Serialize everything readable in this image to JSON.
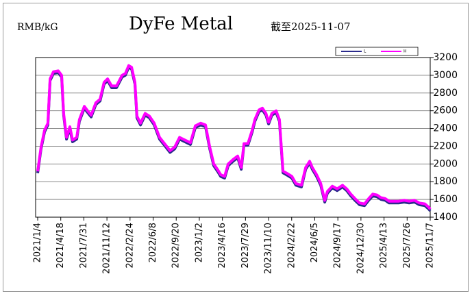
{
  "chart_data": {
    "type": "line",
    "title": "DyFe Metal",
    "unit_label": "RMB/kG",
    "date_note": "截至2025-11-07",
    "x": [
      "2021/1/4",
      "2021/1/19",
      "2021/2/4",
      "2021/2/19",
      "2021/3/1",
      "2021/3/16",
      "2021/4/7",
      "2021/4/22",
      "2021/5/1",
      "2021/5/14",
      "2021/5/29",
      "2021/6/10",
      "2021/6/29",
      "2021/7/11",
      "2021/8/2",
      "2021/8/14",
      "2021/9/2",
      "2021/9/23",
      "2021/10/12",
      "2021/10/30",
      "2021/11/15",
      "2021/12/3",
      "2021/12/25",
      "2022/1/19",
      "2022/2/3",
      "2022/2/18",
      "2022/3/3",
      "2022/3/18",
      "2022/3/27",
      "2022/4/12",
      "2022/5/3",
      "2022/5/22",
      "2022/6/13",
      "2022/7/7",
      "2022/7/29",
      "2022/8/23",
      "2022/9/13",
      "2022/10/5",
      "2022/10/29",
      "2022/11/23",
      "2022/12/15",
      "2023/1/8",
      "2023/1/30",
      "2023/2/18",
      "2023/3/8",
      "2023/3/27",
      "2023/4/8",
      "2023/4/26",
      "2023/5/12",
      "2023/6/3",
      "2023/6/24",
      "2023/7/10",
      "2023/7/22",
      "2023/8/9",
      "2023/8/28",
      "2023/9/9",
      "2023/9/28",
      "2023/10/13",
      "2023/10/29",
      "2023/11/10",
      "2023/11/25",
      "2023/12/14",
      "2023/12/29",
      "2024/1/14",
      "2024/2/4",
      "2024/2/23",
      "2024/3/12",
      "2024/4/6",
      "2024/4/25",
      "2024/5/13",
      "2024/5/25",
      "2024/6/13",
      "2024/7/2",
      "2024/7/20",
      "2024/8/1",
      "2024/8/23",
      "2024/9/14",
      "2024/10/8",
      "2024/10/27",
      "2024/11/14",
      "2024/12/3",
      "2024/12/24",
      "2025/1/15",
      "2025/2/3",
      "2025/2/21",
      "2025/3/12",
      "2025/3/30",
      "2025/4/18",
      "2025/5/6",
      "2025/5/28",
      "2025/6/18",
      "2025/7/13",
      "2025/8/4",
      "2025/8/28",
      "2025/9/19",
      "2025/10/14",
      "2025/11/1",
      "2025/11/7"
    ],
    "series": [
      {
        "name": "L",
        "color": "#2b2b8c",
        "values": [
          1897,
          2170,
          2360,
          2440,
          2940,
          3020,
          3030,
          2980,
          2550,
          2280,
          2400,
          2250,
          2280,
          2480,
          2630,
          2590,
          2530,
          2670,
          2710,
          2900,
          2940,
          2860,
          2860,
          2980,
          3000,
          3090,
          3070,
          2900,
          2520,
          2440,
          2550,
          2520,
          2440,
          2280,
          2210,
          2130,
          2170,
          2280,
          2250,
          2220,
          2410,
          2440,
          2420,
          2170,
          1980,
          1910,
          1860,
          1840,
          1980,
          2030,
          2070,
          1940,
          2210,
          2210,
          2360,
          2480,
          2590,
          2610,
          2550,
          2450,
          2550,
          2580,
          2480,
          1900,
          1870,
          1840,
          1760,
          1740,
          1940,
          2010,
          1940,
          1860,
          1760,
          1570,
          1670,
          1730,
          1700,
          1740,
          1700,
          1640,
          1590,
          1540,
          1530,
          1590,
          1640,
          1630,
          1600,
          1590,
          1560,
          1560,
          1560,
          1570,
          1560,
          1570,
          1540,
          1530,
          1490,
          1470
        ]
      },
      {
        "name": "H",
        "color": "#ff00ff",
        "values": [
          1917,
          2190,
          2380,
          2460,
          2960,
          3040,
          3050,
          3000,
          2570,
          2300,
          2420,
          2270,
          2300,
          2500,
          2650,
          2610,
          2550,
          2690,
          2730,
          2920,
          2960,
          2880,
          2880,
          3000,
          3020,
          3110,
          3090,
          2920,
          2540,
          2460,
          2570,
          2540,
          2460,
          2300,
          2230,
          2150,
          2190,
          2300,
          2270,
          2240,
          2430,
          2460,
          2440,
          2190,
          2000,
          1930,
          1880,
          1860,
          2000,
          2050,
          2090,
          1960,
          2230,
          2230,
          2380,
          2500,
          2610,
          2630,
          2570,
          2470,
          2570,
          2600,
          2500,
          1920,
          1890,
          1860,
          1780,
          1760,
          1960,
          2030,
          1960,
          1880,
          1780,
          1590,
          1690,
          1750,
          1720,
          1760,
          1720,
          1660,
          1610,
          1560,
          1550,
          1610,
          1660,
          1650,
          1620,
          1610,
          1580,
          1580,
          1580,
          1590,
          1580,
          1590,
          1560,
          1550,
          1510,
          1490
        ]
      }
    ],
    "xlim": [
      "2021/1/4",
      "2025/11/7"
    ],
    "xticks": [
      "2021/1/4",
      "2021/4/18",
      "2021/7/31",
      "2021/11/12",
      "2022/2/24",
      "2022/6/8",
      "2022/9/20",
      "2023/1/2",
      "2023/4/16",
      "2023/7/29",
      "2023/11/10",
      "2024/2/22",
      "2024/6/5",
      "2024/9/17",
      "2024/12/30",
      "2025/4/13",
      "2025/7/26",
      "2025/11/7"
    ],
    "ylim": [
      1400,
      3200
    ],
    "yticks": [
      1400,
      1600,
      1800,
      2000,
      2200,
      2400,
      2600,
      2800,
      3000,
      3200
    ],
    "grid": true,
    "y_axis_side": "right"
  }
}
